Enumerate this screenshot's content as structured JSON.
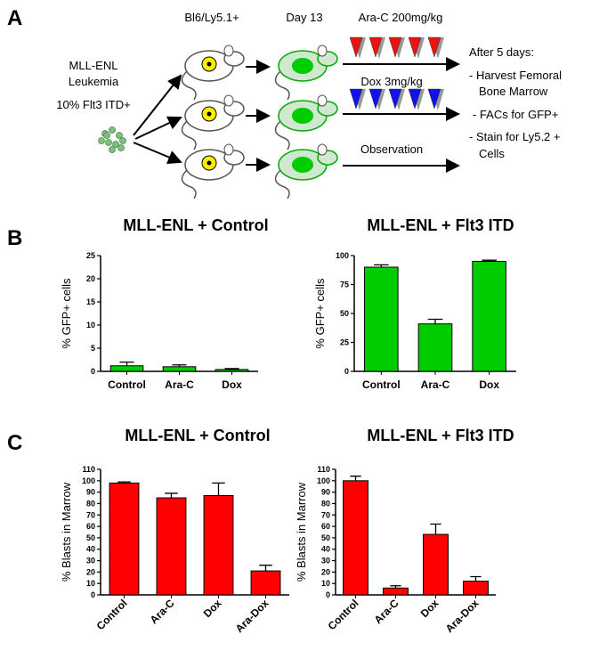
{
  "panel_labels": [
    "A",
    "B",
    "C"
  ],
  "diagram": {
    "left_lines": [
      "MLL-ENL",
      "Leukemia",
      "10% Flt3 ITD+"
    ],
    "strain": "Bl6/Ly5.1+",
    "day": "Day 13",
    "treatments": [
      "Ara-C 200mg/kg",
      "Dox 3mg/kg",
      "Observation"
    ],
    "after_lines": [
      "After 5 days:",
      "- Harvest Femoral",
      "Bone Marrow",
      "- FACs for GFP+",
      "- Stain for Ly5.2 +",
      "Cells"
    ]
  },
  "chart_data": [
    {
      "type": "bar",
      "title": "MLL-ENL + Control",
      "y_label": "% GFP+ cells",
      "categories": [
        "Control",
        "Ara-C",
        "Dox"
      ],
      "values": [
        1.2,
        1.0,
        0.4
      ],
      "errors": [
        0.8,
        0.4,
        0.2
      ],
      "color": "#00cc00",
      "ylim": [
        0,
        25
      ],
      "yticks": [
        0,
        5,
        10,
        15,
        20,
        25
      ],
      "rotate_categories": false
    },
    {
      "type": "bar",
      "title": "MLL-ENL + Flt3 ITD",
      "y_label": "% GFP+ cells",
      "categories": [
        "Control",
        "Ara-C",
        "Dox"
      ],
      "values": [
        90,
        41,
        95
      ],
      "errors": [
        2,
        4,
        1
      ],
      "color": "#00cc00",
      "ylim": [
        0,
        100
      ],
      "yticks": [
        0,
        25,
        50,
        75,
        100
      ],
      "rotate_categories": false
    },
    {
      "type": "bar",
      "title": "MLL-ENL + Control",
      "y_label": "% Blasts in Marrow",
      "categories": [
        "Control",
        "Ara-C",
        "Dox",
        "Ara-Dox"
      ],
      "values": [
        98,
        85,
        87,
        21
      ],
      "errors": [
        1,
        4,
        11,
        5
      ],
      "color": "#ff0000",
      "ylim": [
        0,
        110
      ],
      "yticks": [
        0,
        10,
        20,
        30,
        40,
        50,
        60,
        70,
        80,
        90,
        100,
        110
      ],
      "rotate_categories": true
    },
    {
      "type": "bar",
      "title": "MLL-ENL + Flt3 ITD",
      "y_label": "% Blasts in Marrow",
      "categories": [
        "Control",
        "Ara-C",
        "Dox",
        "Ara-Dox"
      ],
      "values": [
        100,
        6,
        53,
        12
      ],
      "errors": [
        4,
        2,
        9,
        4
      ],
      "color": "#ff0000",
      "ylim": [
        0,
        110
      ],
      "yticks": [
        0,
        10,
        20,
        30,
        40,
        50,
        60,
        70,
        80,
        90,
        100,
        110
      ],
      "rotate_categories": true
    }
  ]
}
